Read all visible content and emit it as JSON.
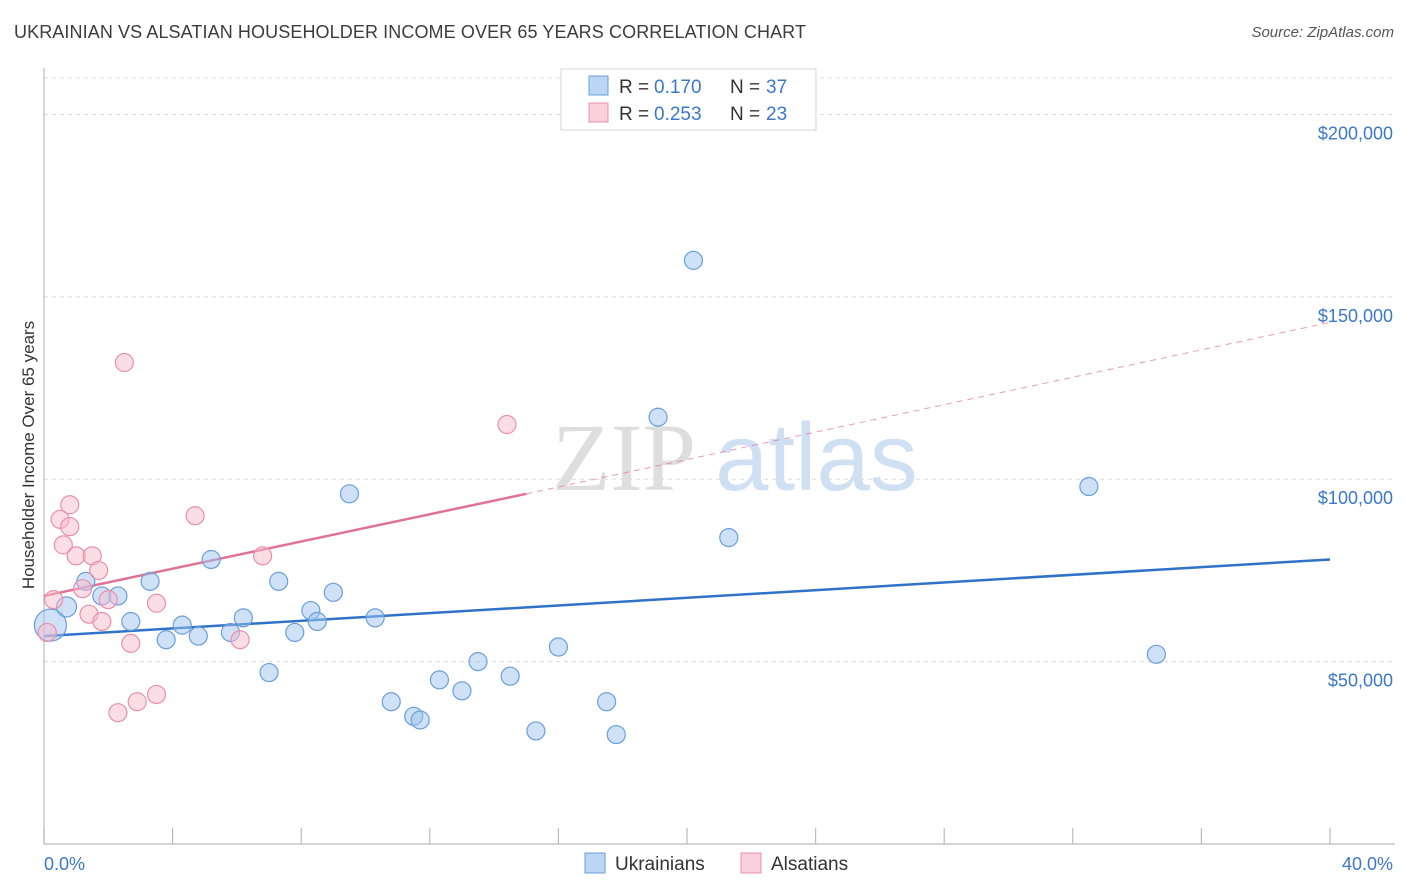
{
  "title": "UKRAINIAN VS ALSATIAN HOUSEHOLDER INCOME OVER 65 YEARS CORRELATION CHART",
  "source": "Source: ZipAtlas.com",
  "watermark": {
    "zip": "ZIP",
    "atlas": "atlas"
  },
  "chart_data": {
    "type": "scatter",
    "title": "UKRAINIAN VS ALSATIAN HOUSEHOLDER INCOME OVER 65 YEARS CORRELATION CHART",
    "xlabel": "",
    "ylabel": "Householder Income Over 65 years",
    "xlim": [
      0,
      40
    ],
    "ylim": [
      0,
      210000
    ],
    "x_tick_labels": [
      "0.0%",
      "40.0%"
    ],
    "y_ticks": [
      50000,
      100000,
      150000,
      200000
    ],
    "y_tick_labels": [
      "$50,000",
      "$100,000",
      "$150,000",
      "$200,000"
    ],
    "grid": true,
    "legend": [
      {
        "name": "Ukrainians",
        "color": "#9ec4f0",
        "edge": "#6a9fd8",
        "r_label": "R =",
        "r_value": "0.170",
        "n_label": "N =",
        "n_value": "37"
      },
      {
        "name": "Alsatians",
        "color": "#f7bccd",
        "edge": "#e890aa",
        "r_label": "R =",
        "r_value": "0.253",
        "n_label": "N =",
        "n_value": "23"
      }
    ],
    "series": [
      {
        "name": "Ukrainians",
        "color": "#9ec4f0",
        "edge": "#6a9fd8",
        "line_color": "#2f72c8",
        "trend": {
          "x0": 0,
          "y0": 57000,
          "x1": 40,
          "y1": 78000
        },
        "points": [
          [
            0.2,
            60000,
            16
          ],
          [
            0.7,
            65000,
            10
          ],
          [
            1.3,
            72000,
            9
          ],
          [
            1.8,
            68000,
            9
          ],
          [
            2.3,
            68000,
            9
          ],
          [
            2.7,
            61000,
            9
          ],
          [
            3.3,
            72000,
            9
          ],
          [
            3.8,
            56000,
            9
          ],
          [
            4.3,
            60000,
            9
          ],
          [
            4.8,
            57000,
            9
          ],
          [
            5.2,
            78000,
            9
          ],
          [
            5.8,
            58000,
            9
          ],
          [
            6.2,
            62000,
            9
          ],
          [
            7.0,
            47000,
            9
          ],
          [
            7.3,
            72000,
            9
          ],
          [
            7.8,
            58000,
            9
          ],
          [
            8.3,
            64000,
            9
          ],
          [
            8.5,
            61000,
            9
          ],
          [
            9.0,
            69000,
            9
          ],
          [
            9.5,
            96000,
            9
          ],
          [
            10.3,
            62000,
            9
          ],
          [
            10.8,
            39000,
            9
          ],
          [
            11.5,
            35000,
            9
          ],
          [
            11.7,
            34000,
            9
          ],
          [
            12.3,
            45000,
            9
          ],
          [
            13.0,
            42000,
            9
          ],
          [
            13.5,
            50000,
            9
          ],
          [
            14.5,
            46000,
            9
          ],
          [
            15.3,
            31000,
            9
          ],
          [
            16.0,
            54000,
            9
          ],
          [
            17.5,
            39000,
            9
          ],
          [
            17.8,
            30000,
            9
          ],
          [
            19.1,
            117000,
            9
          ],
          [
            20.2,
            160000,
            9
          ],
          [
            21.3,
            84000,
            9
          ],
          [
            32.5,
            98000,
            9
          ],
          [
            34.6,
            52000,
            9
          ]
        ]
      },
      {
        "name": "Alsatians",
        "color": "#f7bccd",
        "edge": "#e890aa",
        "line_color": "#e07298",
        "trend": {
          "x0": 0,
          "y0": 68000,
          "x1": 15,
          "y1": 96000
        },
        "trend_extension": {
          "x0": 15,
          "y0": 96000,
          "x1": 40,
          "y1": 143000
        },
        "points": [
          [
            0.1,
            58000,
            9
          ],
          [
            0.3,
            67000,
            9
          ],
          [
            0.5,
            89000,
            9
          ],
          [
            0.6,
            82000,
            9
          ],
          [
            0.8,
            93000,
            9
          ],
          [
            0.8,
            87000,
            9
          ],
          [
            1.0,
            79000,
            9
          ],
          [
            1.2,
            70000,
            9
          ],
          [
            1.4,
            63000,
            9
          ],
          [
            1.5,
            79000,
            9
          ],
          [
            1.7,
            75000,
            9
          ],
          [
            1.8,
            61000,
            9
          ],
          [
            2.0,
            67000,
            9
          ],
          [
            2.3,
            36000,
            9
          ],
          [
            2.5,
            132000,
            9
          ],
          [
            2.7,
            55000,
            9
          ],
          [
            2.9,
            39000,
            9
          ],
          [
            3.5,
            66000,
            9
          ],
          [
            3.5,
            41000,
            9
          ],
          [
            4.7,
            90000,
            9
          ],
          [
            6.1,
            56000,
            9
          ],
          [
            6.8,
            79000,
            9
          ],
          [
            14.4,
            115000,
            9
          ]
        ]
      }
    ]
  }
}
